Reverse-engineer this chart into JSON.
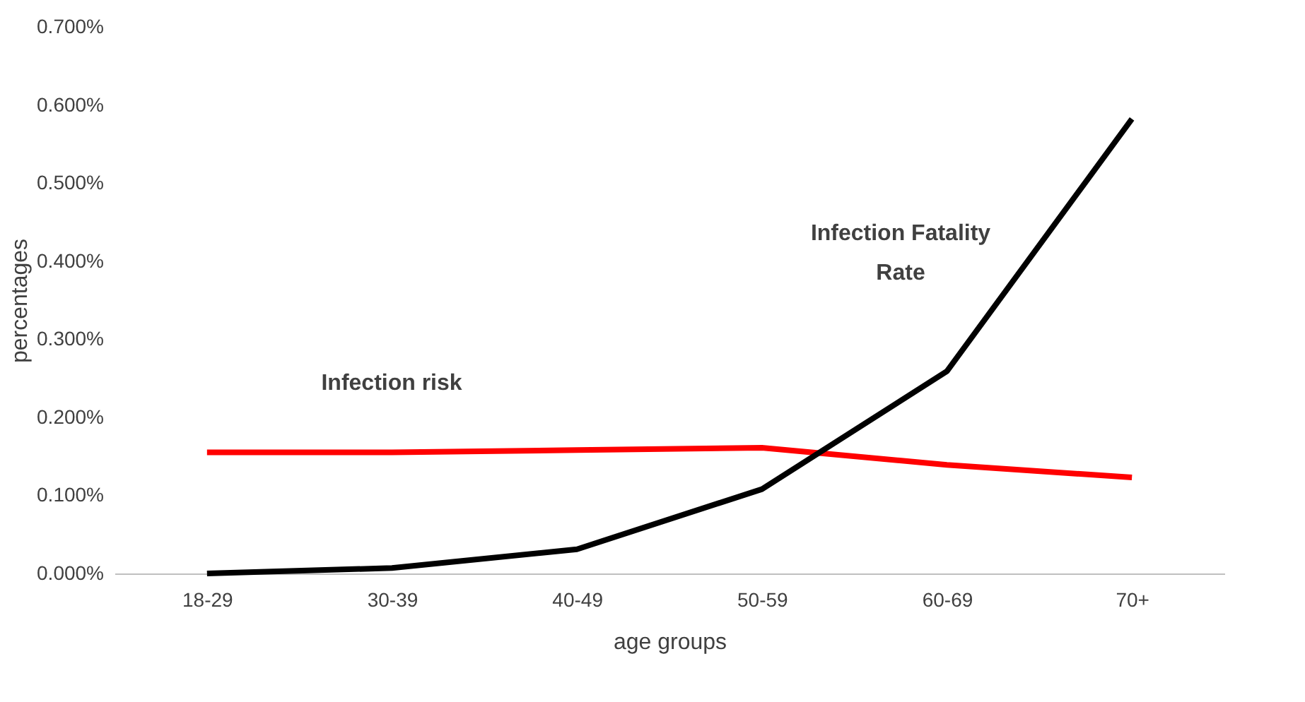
{
  "chart_data": {
    "type": "line",
    "xlabel": "age groups",
    "ylabel": "percentages",
    "categories": [
      "18-29",
      "30-39",
      "40-49",
      "50-59",
      "60-69",
      "70+"
    ],
    "series": [
      {
        "name": "Infection risk",
        "color": "#ff0000",
        "values": [
          0.155,
          0.155,
          0.158,
          0.161,
          0.139,
          0.123
        ]
      },
      {
        "name": "Infection Fatality Rate",
        "color": "#000000",
        "values": [
          0.0,
          0.007,
          0.031,
          0.108,
          0.259,
          0.582
        ]
      }
    ],
    "ylim": [
      0,
      0.7
    ],
    "yticks": [
      {
        "value": 0,
        "label": "0.000%"
      },
      {
        "value": 0.1,
        "label": "0.100%"
      },
      {
        "value": 0.2,
        "label": "0.200%"
      },
      {
        "value": 0.3,
        "label": "0.300%"
      },
      {
        "value": 0.4,
        "label": "0.400%"
      },
      {
        "value": 0.5,
        "label": "0.500%"
      },
      {
        "value": 0.6,
        "label": "0.600%"
      },
      {
        "value": 0.7,
        "label": "0.700%"
      }
    ],
    "grid": false,
    "marker": "none",
    "line_style": "solid"
  }
}
